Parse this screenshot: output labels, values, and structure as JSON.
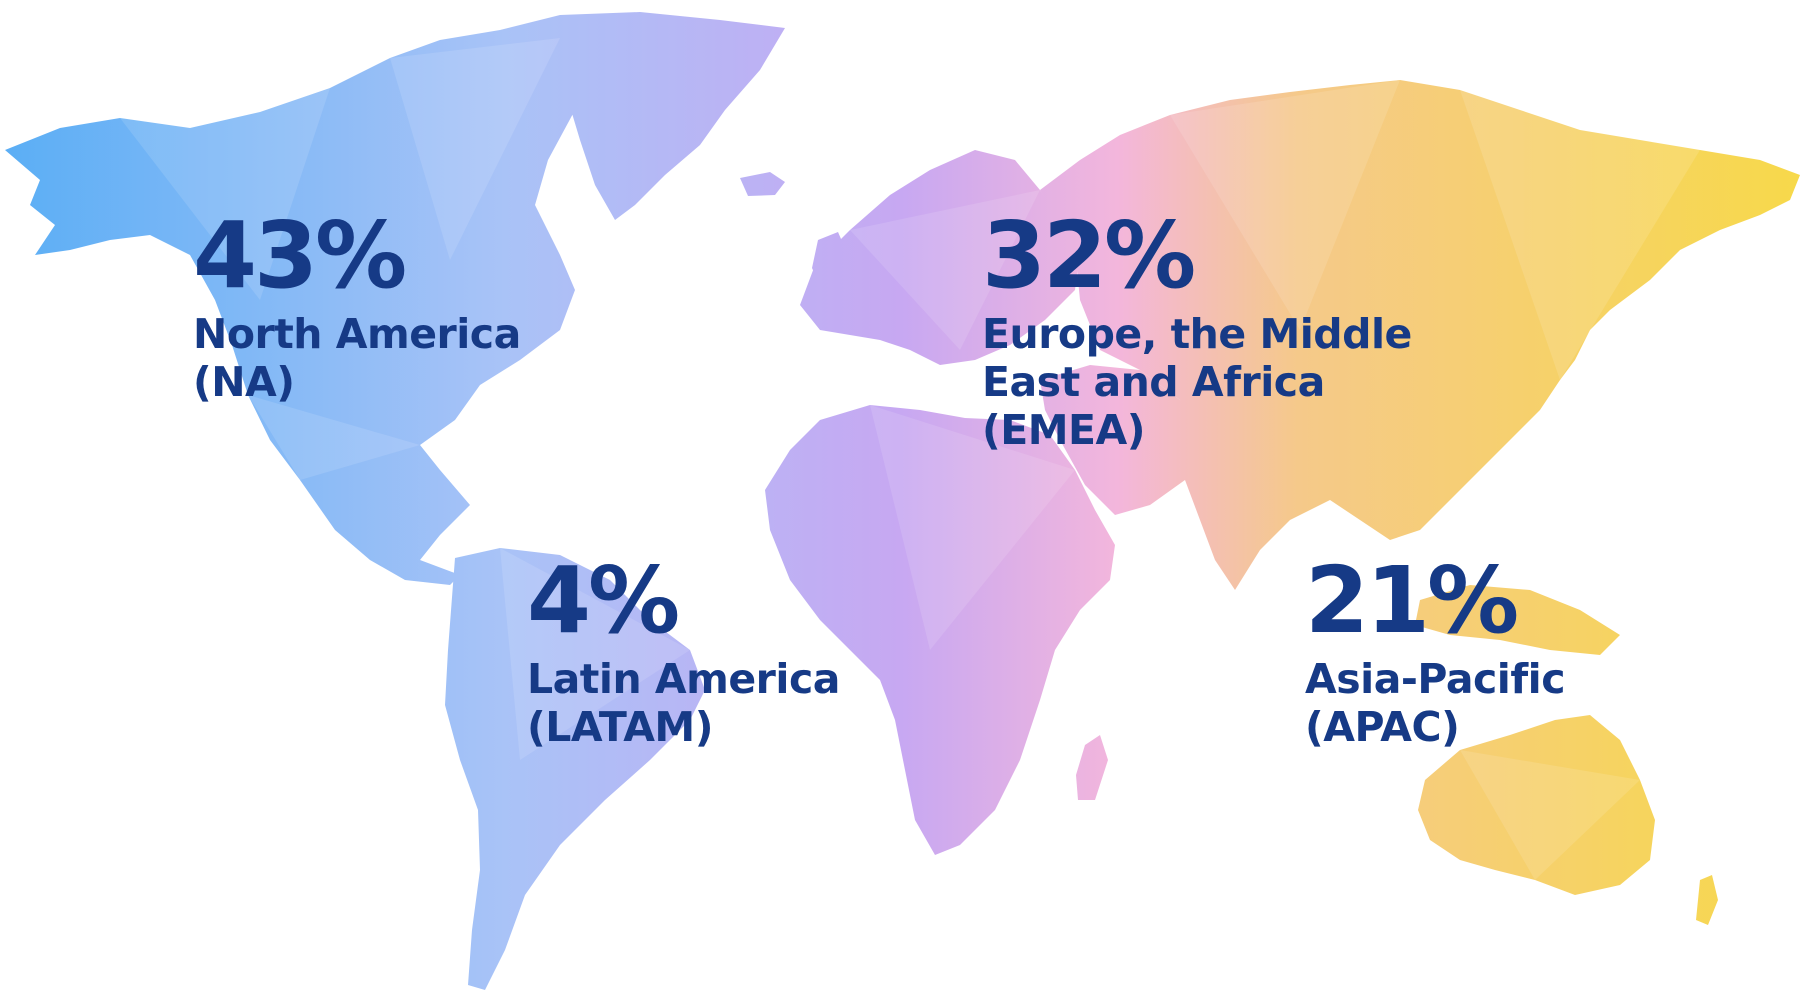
{
  "map": {
    "gradient_colors": [
      "#5aaef5",
      "#a9c3f7",
      "#c7a8f2",
      "#f3b6dc",
      "#f5c98a",
      "#f7d94a"
    ]
  },
  "regions": [
    {
      "id": "na",
      "percent": "43%",
      "label_lines": [
        "North America",
        "(NA)"
      ]
    },
    {
      "id": "emea",
      "percent": "32%",
      "label_lines": [
        "Europe, the Middle",
        "East and Africa",
        "(EMEA)"
      ]
    },
    {
      "id": "latam",
      "percent": "4%",
      "label_lines": [
        "Latin America",
        "(LATAM)"
      ]
    },
    {
      "id": "apac",
      "percent": "21%",
      "label_lines": [
        "Asia-Pacific",
        "(APAC)"
      ]
    }
  ]
}
